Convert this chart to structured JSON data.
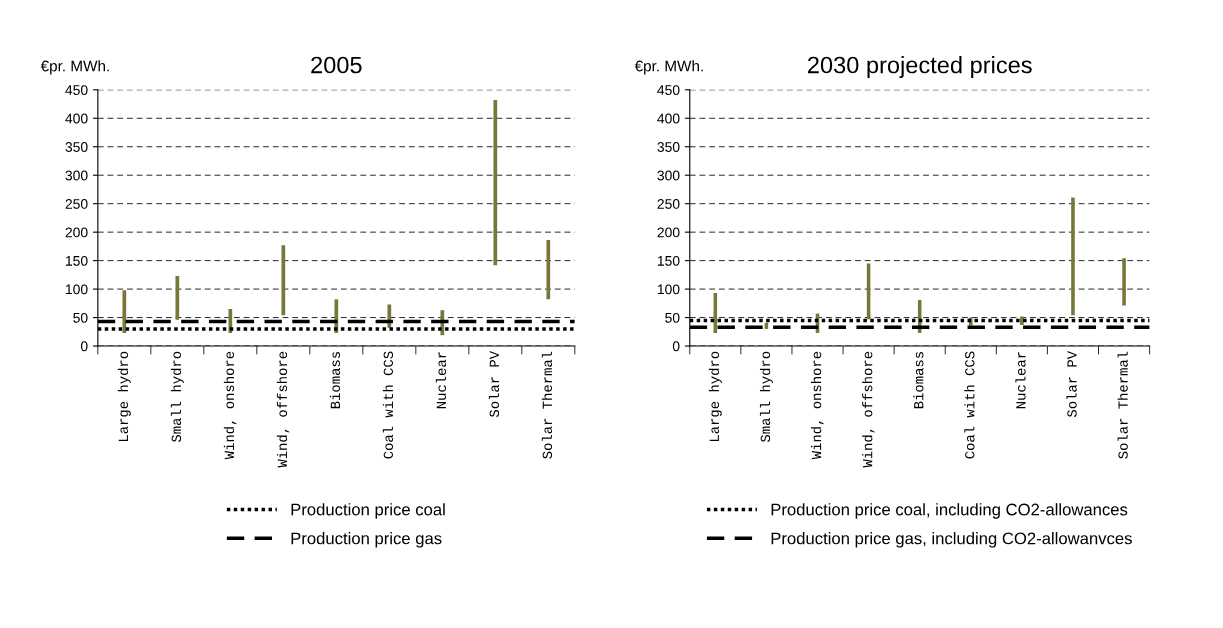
{
  "chart_data": [
    {
      "type": "bar",
      "title": "2005",
      "ylabel": "€pr. MWh.",
      "categories": [
        "Large hydro",
        "Small hydro",
        "Wind, onshore",
        "Wind, offshore",
        "Biomass",
        "Coal with CCS",
        "Nuclear",
        "Solar PV",
        "Solar Thermal"
      ],
      "base": [
        23,
        46,
        23,
        54,
        23,
        32,
        19,
        142,
        82
      ],
      "values": [
        75,
        77,
        42,
        123,
        59,
        41,
        44,
        290,
        104
      ],
      "color": "#77773a",
      "ylim": [
        0,
        450
      ],
      "yticks": [
        0,
        50,
        100,
        150,
        200,
        250,
        300,
        350,
        400,
        450
      ],
      "grid": "y",
      "ref_lines": [
        {
          "axis": "y",
          "value": 30,
          "label": "Production price coal",
          "line_style": "dotted",
          "color": "#000000"
        },
        {
          "axis": "y",
          "value": 43,
          "label": "Production price gas",
          "line_style": "dashed",
          "color": "#000000"
        }
      ],
      "legend": "bottom"
    },
    {
      "type": "bar",
      "title": "2030 projected prices",
      "ylabel": "€pr. MWh.",
      "categories": [
        "Large hydro",
        "Small hydro",
        "Wind, onshore",
        "Wind, offshore",
        "Biomass",
        "Coal with CCS",
        "Nuclear",
        "Solar PV",
        "Solar Thermal"
      ],
      "base": [
        23,
        30,
        23,
        47,
        23,
        36,
        37,
        54,
        71
      ],
      "values": [
        70,
        11,
        34,
        98,
        58,
        14,
        15,
        207,
        83
      ],
      "color": "#77773a",
      "ylim": [
        0,
        450
      ],
      "yticks": [
        0,
        50,
        100,
        150,
        200,
        250,
        300,
        350,
        400,
        450
      ],
      "grid": "y",
      "ref_lines": [
        {
          "axis": "y",
          "value": 45,
          "label": "Production price coal, including CO2-allowances",
          "line_style": "dotted",
          "color": "#000000"
        },
        {
          "axis": "y",
          "value": 33,
          "label": "Production price gas, including CO2-allowanvces",
          "line_style": "dashed",
          "color": "#000000"
        }
      ],
      "legend": "bottom"
    }
  ]
}
